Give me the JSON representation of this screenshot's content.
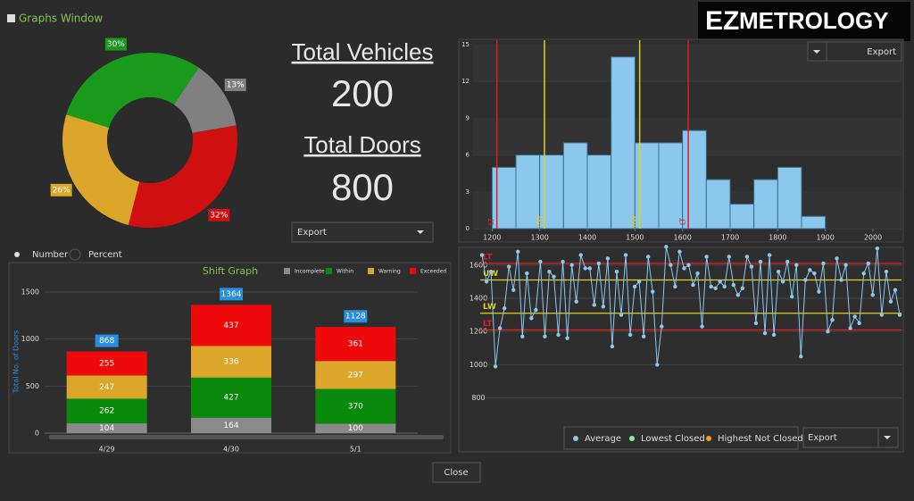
{
  "window_title": "Graphs Window",
  "logo": {
    "prefix": "EZ",
    "text": "METROLOGY"
  },
  "summary": {
    "vehicles_label": "Total Vehicles",
    "vehicles": 200,
    "doors_label": "Total Doors",
    "doors": 800
  },
  "export_label": "Export",
  "radio": [
    "Number",
    "Percent"
  ],
  "close": "Close",
  "chart_data": [
    {
      "type": "pie",
      "donut": true,
      "values": [
        30,
        13,
        32,
        26
      ],
      "value_labels": [
        "30%",
        "13%",
        "32%",
        "26%"
      ],
      "colors": [
        "#1a9a1a",
        "#808080",
        "#d01010",
        "#dca62a"
      ]
    },
    {
      "type": "bar",
      "stacked": true,
      "title": "Shift Graph",
      "y_label": "Total No. of Doors",
      "categories": [
        "4/29",
        "4/30",
        "5/1"
      ],
      "series": [
        {
          "name": "Incomplete",
          "color": "#8a8a8a",
          "values": [
            104,
            164,
            100
          ]
        },
        {
          "name": "Within",
          "color": "#0a8a0a",
          "values": [
            262,
            427,
            370
          ]
        },
        {
          "name": "Warning",
          "color": "#dca62a",
          "values": [
            247,
            336,
            297
          ]
        },
        {
          "name": "Exceeded",
          "color": "#ee0a0a",
          "values": [
            255,
            437,
            361
          ]
        }
      ],
      "totals": [
        868,
        1364,
        1128
      ],
      "total_color": "#2a8ee0",
      "ylim": [
        0,
        1500
      ],
      "yticks": [
        0,
        500,
        1000,
        1500
      ],
      "grid": true,
      "legend": "top-right"
    },
    {
      "type": "histogram",
      "bins": [
        1200,
        1250,
        1300,
        1350,
        1400,
        1450,
        1500,
        1550,
        1600,
        1650,
        1700,
        1750,
        1800,
        1850,
        1900
      ],
      "counts": [
        5,
        6,
        6,
        7,
        6,
        14,
        7,
        7,
        8,
        4,
        2,
        4,
        5,
        1
      ],
      "color": "#8cc8ee",
      "xlim": [
        1160,
        2060
      ],
      "xticks": [
        1200,
        1300,
        1400,
        1500,
        1600,
        1700,
        1800,
        1900,
        2000
      ],
      "ylim": [
        0,
        15
      ],
      "yticks": [
        0,
        3,
        6,
        9,
        12,
        15
      ],
      "grid": true,
      "reference_lines": [
        {
          "label": "LT",
          "value": 1210,
          "color": "#e02020"
        },
        {
          "label": "UW",
          "value": 1310,
          "color": "#e0d020"
        },
        {
          "label": "UW",
          "value": 1510,
          "color": "#e0d020"
        },
        {
          "label": "LT",
          "value": 1612,
          "color": "#e02020"
        }
      ]
    },
    {
      "type": "line",
      "ylim": [
        680,
        1690
      ],
      "yticks": [
        800,
        1000,
        1200,
        1400,
        1600
      ],
      "grid": true,
      "series": [
        {
          "name": "Average",
          "color": "#8cc8ee",
          "values": [
            1660,
            1500,
            1560,
            990,
            1220,
            1340,
            1590,
            1450,
            1680,
            1170,
            1550,
            1280,
            1330,
            1620,
            1170,
            1560,
            1530,
            1180,
            1620,
            1160,
            1600,
            1380,
            1660,
            1580,
            1580,
            1360,
            1610,
            1350,
            1640,
            1110,
            1560,
            1300,
            1660,
            1180,
            1470,
            1500,
            1170,
            1650,
            1440,
            1000,
            1230,
            1710,
            1600,
            1470,
            1680,
            1580,
            1600,
            1480,
            1550,
            1230,
            1650,
            1470,
            1460,
            1500,
            1470,
            1650,
            1480,
            1420,
            1460,
            1650,
            1590,
            1250,
            1620,
            1190,
            1660,
            1180,
            1560,
            1500,
            1620,
            1410,
            1600,
            1050,
            1510,
            1570,
            1550,
            1440,
            1610,
            1200,
            1270,
            1640,
            1510,
            1600,
            1220,
            1290,
            1250,
            1550,
            1610,
            1420,
            1700,
            1300,
            1560,
            1380,
            1450,
            1300
          ]
        }
      ],
      "extra_legend": [
        {
          "name": "Lowest Closed",
          "color": "#90ee90"
        },
        {
          "name": "Highest Not Closed",
          "color": "#f0a020"
        }
      ],
      "reference_lines": [
        {
          "label": "LT",
          "value": 1610,
          "color": "#e02020"
        },
        {
          "label": "UW",
          "value": 1510,
          "color": "#e0d020"
        },
        {
          "label": "LW",
          "value": 1310,
          "color": "#e0d020"
        },
        {
          "label": "LT",
          "value": 1210,
          "color": "#e02020"
        }
      ]
    }
  ]
}
